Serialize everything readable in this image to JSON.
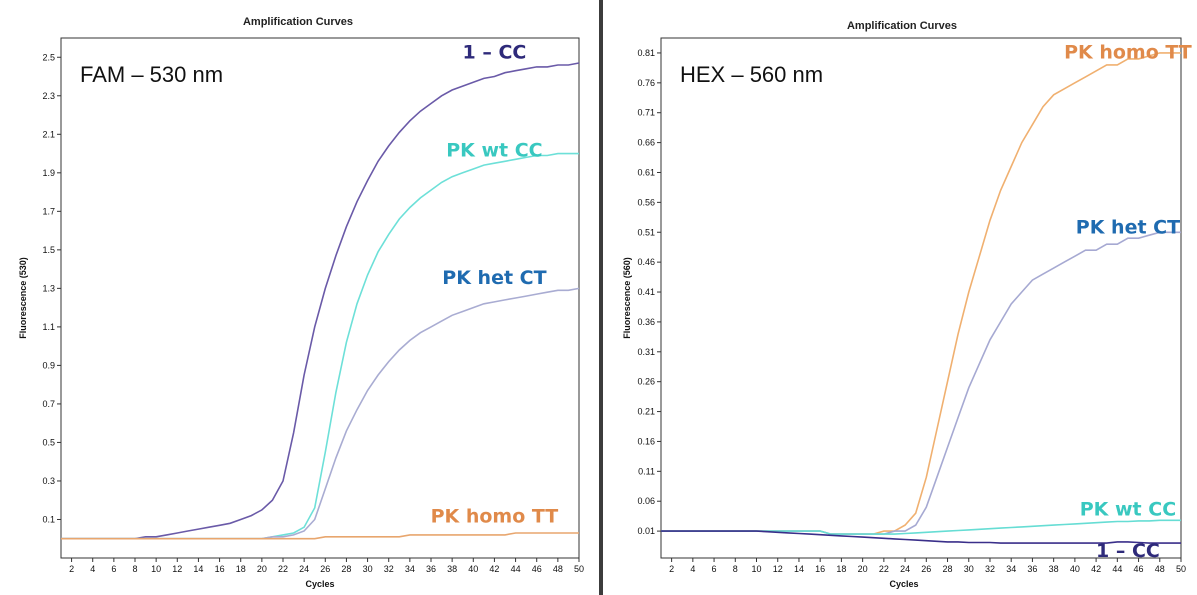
{
  "chart_data": [
    {
      "type": "line",
      "title": "Amplification Curves",
      "annotation": "FAM – 530 nm",
      "xlabel": "Cycles",
      "ylabel": "Fluorescence (530)",
      "xlim": [
        1,
        50
      ],
      "ylim": [
        -0.1,
        2.6
      ],
      "xticks": [
        2,
        4,
        6,
        8,
        10,
        12,
        14,
        16,
        18,
        20,
        22,
        24,
        26,
        28,
        30,
        32,
        34,
        36,
        38,
        40,
        42,
        44,
        46,
        48,
        50
      ],
      "yticks": [
        0.1,
        0.3,
        0.5,
        0.7,
        0.9,
        1.1,
        1.3,
        1.5,
        1.7,
        1.9,
        2.1,
        2.3,
        2.5
      ],
      "ytick_labels": [
        "0.1",
        "0.3",
        "0.5",
        "0.7",
        "0.9",
        "1.1",
        "1.3",
        "1.5",
        "1.7",
        "1.9",
        "2.1",
        "2.3",
        "2.5"
      ],
      "x": [
        1,
        2,
        3,
        4,
        5,
        6,
        7,
        8,
        9,
        10,
        11,
        12,
        13,
        14,
        15,
        16,
        17,
        18,
        19,
        20,
        21,
        22,
        23,
        24,
        25,
        26,
        27,
        28,
        29,
        30,
        31,
        32,
        33,
        34,
        35,
        36,
        37,
        38,
        39,
        40,
        41,
        42,
        43,
        44,
        45,
        46,
        47,
        48,
        49,
        50
      ],
      "series": [
        {
          "name": "1 – CC",
          "color": "#6a5aa8",
          "label_color": "#2e2a7a",
          "label_at": [
            42,
            2.53
          ],
          "values": [
            0.0,
            0.0,
            0.0,
            0.0,
            0.0,
            0.0,
            0.0,
            0.0,
            0.01,
            0.01,
            0.02,
            0.03,
            0.04,
            0.05,
            0.06,
            0.07,
            0.08,
            0.1,
            0.12,
            0.15,
            0.2,
            0.3,
            0.55,
            0.85,
            1.1,
            1.3,
            1.47,
            1.62,
            1.75,
            1.86,
            1.96,
            2.04,
            2.11,
            2.17,
            2.22,
            2.26,
            2.3,
            2.33,
            2.35,
            2.37,
            2.39,
            2.4,
            2.42,
            2.43,
            2.44,
            2.45,
            2.45,
            2.46,
            2.46,
            2.47
          ]
        },
        {
          "name": "PK wt CC",
          "color": "#6de0d8",
          "label_color": "#39c8c0",
          "label_at": [
            42,
            2.02
          ],
          "values": [
            0.0,
            0.0,
            0.0,
            0.0,
            0.0,
            0.0,
            0.0,
            0.0,
            0.0,
            0.0,
            0.0,
            0.0,
            0.0,
            0.0,
            0.0,
            0.0,
            0.0,
            0.0,
            0.0,
            0.0,
            0.01,
            0.02,
            0.03,
            0.06,
            0.16,
            0.45,
            0.76,
            1.02,
            1.22,
            1.37,
            1.49,
            1.58,
            1.66,
            1.72,
            1.77,
            1.81,
            1.85,
            1.88,
            1.9,
            1.92,
            1.94,
            1.95,
            1.96,
            1.97,
            1.98,
            1.99,
            1.99,
            2.0,
            2.0,
            2.0
          ]
        },
        {
          "name": "PK het CT",
          "color": "#a9acd2",
          "label_color": "#1f6bb0",
          "label_at": [
            42,
            1.36
          ],
          "values": [
            0.0,
            0.0,
            0.0,
            0.0,
            0.0,
            0.0,
            0.0,
            0.0,
            0.0,
            0.0,
            0.0,
            0.0,
            0.0,
            0.0,
            0.0,
            0.0,
            0.0,
            0.0,
            0.0,
            0.0,
            0.01,
            0.01,
            0.02,
            0.04,
            0.1,
            0.26,
            0.42,
            0.56,
            0.67,
            0.77,
            0.85,
            0.92,
            0.98,
            1.03,
            1.07,
            1.1,
            1.13,
            1.16,
            1.18,
            1.2,
            1.22,
            1.23,
            1.24,
            1.25,
            1.26,
            1.27,
            1.28,
            1.29,
            1.29,
            1.3
          ]
        },
        {
          "name": "PK homo TT",
          "color": "#e8a66e",
          "label_color": "#e08a4a",
          "label_at": [
            42,
            0.12
          ],
          "values": [
            0.0,
            0.0,
            0.0,
            0.0,
            0.0,
            0.0,
            0.0,
            0.0,
            0.0,
            0.0,
            0.0,
            0.0,
            0.0,
            0.0,
            0.0,
            0.0,
            0.0,
            0.0,
            0.0,
            0.0,
            0.0,
            0.0,
            0.0,
            0.0,
            0.0,
            0.01,
            0.01,
            0.01,
            0.01,
            0.01,
            0.01,
            0.01,
            0.01,
            0.02,
            0.02,
            0.02,
            0.02,
            0.02,
            0.02,
            0.02,
            0.02,
            0.02,
            0.02,
            0.03,
            0.03,
            0.03,
            0.03,
            0.03,
            0.03,
            0.03
          ]
        }
      ]
    },
    {
      "type": "line",
      "title": "Amplification Curves",
      "annotation": "HEX – 560 nm",
      "xlabel": "Cycles",
      "ylabel": "Fluorescence (560)",
      "xlim": [
        1,
        50
      ],
      "ylim": [
        -0.035,
        0.835
      ],
      "xticks": [
        2,
        4,
        6,
        8,
        10,
        12,
        14,
        16,
        18,
        20,
        22,
        24,
        26,
        28,
        30,
        32,
        34,
        36,
        38,
        40,
        42,
        44,
        46,
        48,
        50
      ],
      "yticks": [
        0.01,
        0.06,
        0.11,
        0.16,
        0.21,
        0.26,
        0.31,
        0.36,
        0.41,
        0.46,
        0.51,
        0.56,
        0.61,
        0.66,
        0.71,
        0.76,
        0.81
      ],
      "ytick_labels": [
        "0.01",
        "0.06",
        "0.11",
        "0.16",
        "0.21",
        "0.26",
        "0.31",
        "0.36",
        "0.41",
        "0.46",
        "0.51",
        "0.56",
        "0.61",
        "0.66",
        "0.71",
        "0.76",
        "0.81"
      ],
      "x": [
        1,
        2,
        3,
        4,
        5,
        6,
        7,
        8,
        9,
        10,
        11,
        12,
        13,
        14,
        15,
        16,
        17,
        18,
        19,
        20,
        21,
        22,
        23,
        24,
        25,
        26,
        27,
        28,
        29,
        30,
        31,
        32,
        33,
        34,
        35,
        36,
        37,
        38,
        39,
        40,
        41,
        42,
        43,
        44,
        45,
        46,
        47,
        48,
        49,
        50
      ],
      "series": [
        {
          "name": "PK homo TT",
          "color": "#f0b070",
          "label_color": "#e08a4a",
          "label_at": [
            45,
            0.812
          ],
          "values": [
            0.01,
            0.01,
            0.01,
            0.01,
            0.01,
            0.01,
            0.01,
            0.01,
            0.01,
            0.01,
            0.01,
            0.01,
            0.01,
            0.01,
            0.01,
            0.01,
            0.005,
            0.005,
            0.005,
            0.005,
            0.005,
            0.01,
            0.01,
            0.02,
            0.04,
            0.1,
            0.18,
            0.26,
            0.34,
            0.41,
            0.47,
            0.53,
            0.58,
            0.62,
            0.66,
            0.69,
            0.72,
            0.74,
            0.75,
            0.76,
            0.77,
            0.78,
            0.79,
            0.79,
            0.8,
            0.8,
            0.805,
            0.81,
            0.81,
            0.81
          ]
        },
        {
          "name": "PK het CT",
          "color": "#a6a9d2",
          "label_color": "#1f6bb0",
          "label_at": [
            45,
            0.52
          ],
          "values": [
            0.01,
            0.01,
            0.01,
            0.01,
            0.01,
            0.01,
            0.01,
            0.01,
            0.01,
            0.01,
            0.01,
            0.01,
            0.01,
            0.01,
            0.01,
            0.01,
            0.005,
            0.005,
            0.005,
            0.005,
            0.005,
            0.005,
            0.01,
            0.01,
            0.02,
            0.05,
            0.1,
            0.15,
            0.2,
            0.25,
            0.29,
            0.33,
            0.36,
            0.39,
            0.41,
            0.43,
            0.44,
            0.45,
            0.46,
            0.47,
            0.48,
            0.48,
            0.49,
            0.49,
            0.5,
            0.5,
            0.505,
            0.51,
            0.51,
            0.51
          ]
        },
        {
          "name": "PK wt CC",
          "color": "#66ddd4",
          "label_color": "#39c8c0",
          "label_at": [
            45,
            0.048
          ],
          "values": [
            0.01,
            0.01,
            0.01,
            0.01,
            0.01,
            0.01,
            0.01,
            0.01,
            0.01,
            0.01,
            0.01,
            0.01,
            0.01,
            0.01,
            0.01,
            0.01,
            0.005,
            0.005,
            0.005,
            0.005,
            0.005,
            0.005,
            0.005,
            0.006,
            0.007,
            0.008,
            0.009,
            0.01,
            0.011,
            0.012,
            0.013,
            0.014,
            0.015,
            0.016,
            0.017,
            0.018,
            0.019,
            0.02,
            0.021,
            0.022,
            0.023,
            0.024,
            0.025,
            0.026,
            0.026,
            0.027,
            0.027,
            0.028,
            0.028,
            0.028
          ]
        },
        {
          "name": "1 – CC",
          "color": "#3a2f8a",
          "label_color": "#2e2a7a",
          "label_at": [
            45,
            -0.022
          ],
          "values": [
            0.01,
            0.01,
            0.01,
            0.01,
            0.01,
            0.01,
            0.01,
            0.01,
            0.01,
            0.01,
            0.009,
            0.008,
            0.007,
            0.006,
            0.005,
            0.004,
            0.003,
            0.002,
            0.001,
            0.0,
            -0.001,
            -0.002,
            -0.003,
            -0.004,
            -0.005,
            -0.006,
            -0.007,
            -0.008,
            -0.008,
            -0.009,
            -0.009,
            -0.009,
            -0.01,
            -0.01,
            -0.01,
            -0.01,
            -0.01,
            -0.01,
            -0.01,
            -0.01,
            -0.01,
            -0.01,
            -0.01,
            -0.008,
            -0.008,
            -0.009,
            -0.01,
            -0.01,
            -0.01,
            -0.01
          ]
        }
      ]
    }
  ]
}
